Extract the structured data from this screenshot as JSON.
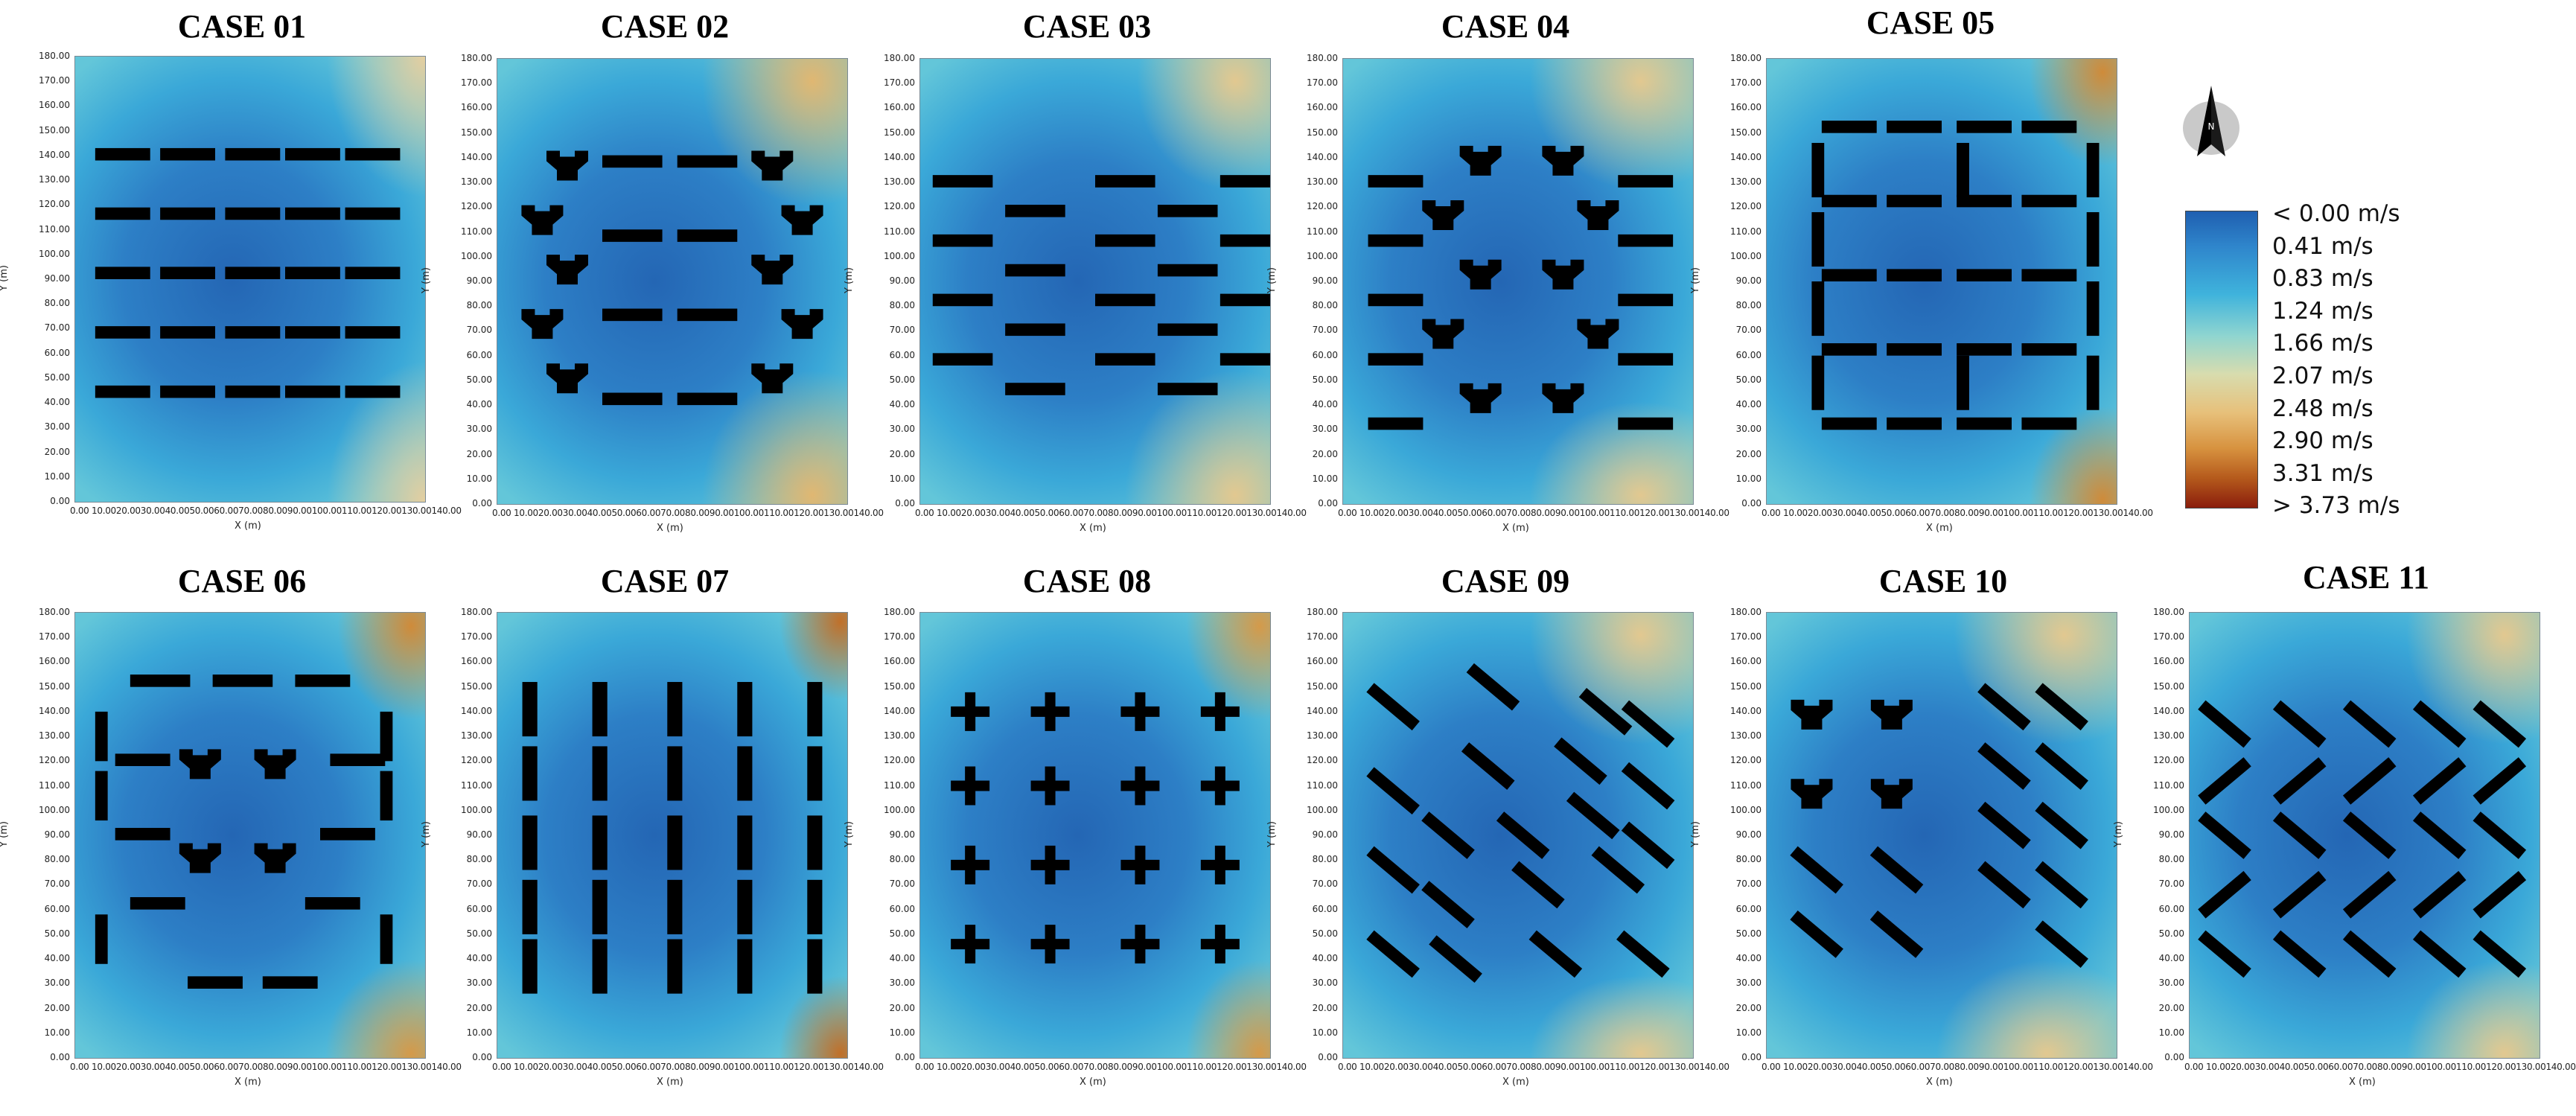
{
  "cases": [
    {
      "title": "CASE 01",
      "layout": "rows"
    },
    {
      "title": "CASE 02",
      "layout": "courtyard-y"
    },
    {
      "title": "CASE 03",
      "layout": "staggered"
    },
    {
      "title": "CASE 04",
      "layout": "staggered-y"
    },
    {
      "title": "CASE 05",
      "layout": "grid-enclosed"
    },
    {
      "title": "CASE 06",
      "layout": "courtyard-mixed"
    },
    {
      "title": "CASE 07",
      "layout": "columns"
    },
    {
      "title": "CASE 08",
      "layout": "crosses"
    },
    {
      "title": "CASE 09",
      "layout": "diagonal"
    },
    {
      "title": "CASE 10",
      "layout": "diagonal-y"
    },
    {
      "title": "CASE 11",
      "layout": "x-pattern"
    }
  ],
  "axes": {
    "xlabel": "X (m)",
    "ylabel": "Y (m)",
    "yticks": [
      "180.00",
      "170.00",
      "160.00",
      "150.00",
      "140.00",
      "130.00",
      "120.00",
      "110.00",
      "100.00",
      "90.00",
      "80.00",
      "70.00",
      "60.00",
      "50.00",
      "40.00",
      "30.00",
      "20.00",
      "10.00",
      "0.00"
    ],
    "xticks": "0.00 10.0020.0030.0040.0050.0060.0070.0080.0090.00100.00110.00120.00130.00140.00",
    "xlim": [
      0,
      140
    ],
    "ylim": [
      0,
      180
    ]
  },
  "legend": {
    "labels": [
      "< 0.00 m/s",
      "0.41  m/s",
      "0.83  m/s",
      "1.24  m/s",
      "1.66  m/s",
      "2.07  m/s",
      "2.48  m/s",
      "2.90  m/s",
      "3.31  m/s",
      "> 3.73 m/s"
    ],
    "colors": [
      "#1f5fb0",
      "#2f86cc",
      "#3fb3dc",
      "#8fd5d0",
      "#d8dcae",
      "#e7c07a",
      "#d7923f",
      "#b55a1c",
      "#8a1d0c"
    ]
  },
  "compass": {
    "letter": "N",
    "icon": "north-arrow-icon"
  }
}
